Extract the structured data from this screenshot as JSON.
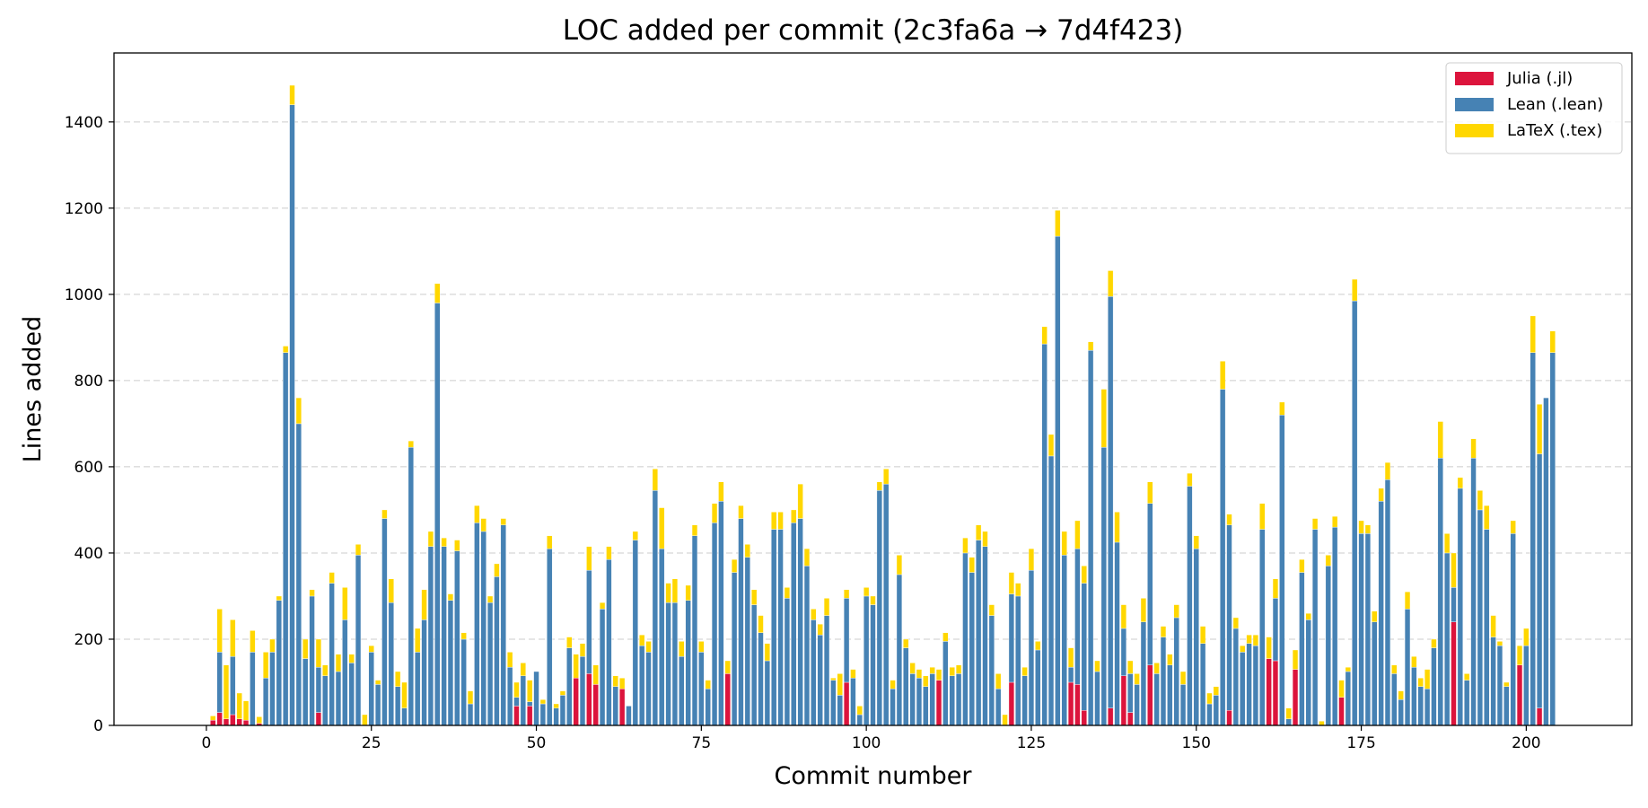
{
  "chart_data": {
    "type": "bar",
    "stacked": true,
    "title": "LOC added per commit (2c3fa6a → 7d4f423)",
    "xlabel": "Commit number",
    "ylabel": "Lines added",
    "xlim": [
      -14,
      216
    ],
    "ylim": [
      0,
      1560
    ],
    "xticks": [
      0,
      25,
      50,
      75,
      100,
      125,
      150,
      175,
      200
    ],
    "yticks": [
      0,
      200,
      400,
      600,
      800,
      1000,
      1200,
      1400
    ],
    "grid": "y-dashed",
    "legend_position": "top-right",
    "x": [
      1,
      2,
      3,
      4,
      5,
      6,
      7,
      8,
      9,
      10,
      11,
      12,
      13,
      14,
      15,
      16,
      17,
      18,
      19,
      20,
      21,
      22,
      23,
      24,
      25,
      26,
      27,
      28,
      29,
      30,
      31,
      32,
      33,
      34,
      35,
      36,
      37,
      38,
      39,
      40,
      41,
      42,
      43,
      44,
      45,
      46,
      47,
      48,
      49,
      50,
      51,
      52,
      53,
      54,
      55,
      56,
      57,
      58,
      59,
      60,
      61,
      62,
      63,
      64,
      65,
      66,
      67,
      68,
      69,
      70,
      71,
      72,
      73,
      74,
      75,
      76,
      77,
      78,
      79,
      80,
      81,
      82,
      83,
      84,
      85,
      86,
      87,
      88,
      89,
      90,
      91,
      92,
      93,
      94,
      95,
      96,
      97,
      98,
      99,
      100,
      101,
      102,
      103,
      104,
      105,
      106,
      107,
      108,
      109,
      110,
      111,
      112,
      113,
      114,
      115,
      116,
      117,
      118,
      119,
      120,
      121,
      122,
      123,
      124,
      125,
      126,
      127,
      128,
      129,
      130,
      131,
      132,
      133,
      134,
      135,
      136,
      137,
      138,
      139,
      140,
      141,
      142,
      143,
      144,
      145,
      146,
      147,
      148,
      149,
      150,
      151,
      152,
      153,
      154,
      155,
      156,
      157,
      158,
      159,
      160,
      161,
      162,
      163,
      164,
      165,
      166,
      167,
      168,
      169,
      170,
      171,
      172,
      173,
      174,
      175,
      176,
      177,
      178,
      179,
      180,
      181,
      182,
      183,
      184,
      185,
      186,
      187,
      188,
      189,
      190,
      191,
      192,
      193,
      194,
      195,
      196,
      197,
      198,
      199,
      200,
      201,
      202,
      203,
      204
    ],
    "series": [
      {
        "name": "Julia (.jl)",
        "color": "#dc143c",
        "values": [
          12,
          30,
          15,
          25,
          15,
          12,
          0,
          5,
          0,
          0,
          0,
          0,
          0,
          0,
          0,
          0,
          30,
          0,
          0,
          0,
          0,
          0,
          0,
          0,
          0,
          0,
          0,
          0,
          0,
          0,
          0,
          0,
          0,
          0,
          0,
          0,
          0,
          0,
          0,
          0,
          0,
          0,
          0,
          0,
          0,
          0,
          45,
          0,
          45,
          0,
          0,
          0,
          0,
          0,
          0,
          110,
          0,
          120,
          95,
          0,
          0,
          0,
          85,
          0,
          0,
          0,
          0,
          0,
          0,
          0,
          0,
          0,
          0,
          0,
          0,
          0,
          0,
          0,
          120,
          0,
          0,
          0,
          0,
          0,
          0,
          0,
          0,
          0,
          0,
          0,
          0,
          0,
          0,
          0,
          0,
          0,
          100,
          0,
          0,
          0,
          0,
          0,
          0,
          0,
          0,
          0,
          0,
          0,
          0,
          0,
          105,
          0,
          0,
          0,
          0,
          0,
          0,
          0,
          0,
          0,
          0,
          100,
          0,
          0,
          0,
          0,
          0,
          0,
          0,
          0,
          100,
          95,
          35,
          0,
          0,
          0,
          40,
          0,
          115,
          30,
          0,
          0,
          140,
          0,
          0,
          0,
          0,
          0,
          0,
          0,
          0,
          0,
          0,
          0,
          35,
          0,
          0,
          0,
          0,
          0,
          155,
          150,
          0,
          0,
          130,
          0,
          0,
          0,
          0,
          0,
          0,
          65,
          0,
          0,
          0,
          0,
          0,
          0,
          0,
          0,
          0,
          0,
          0,
          0,
          0,
          0,
          0,
          0,
          240,
          0,
          0,
          0,
          0,
          0,
          0,
          0,
          0,
          0,
          140,
          0,
          0,
          40,
          0,
          0
        ]
      },
      {
        "name": "Lean (.lean)",
        "color": "#4682b4",
        "values": [
          0,
          140,
          0,
          135,
          0,
          0,
          170,
          0,
          110,
          170,
          290,
          865,
          1440,
          700,
          155,
          300,
          105,
          115,
          330,
          125,
          245,
          145,
          395,
          0,
          170,
          95,
          480,
          285,
          90,
          40,
          645,
          170,
          245,
          415,
          980,
          415,
          290,
          405,
          200,
          50,
          470,
          450,
          285,
          345,
          465,
          135,
          20,
          115,
          10,
          125,
          50,
          410,
          40,
          70,
          180,
          0,
          160,
          240,
          0,
          270,
          385,
          90,
          0,
          45,
          430,
          185,
          170,
          545,
          410,
          285,
          285,
          160,
          290,
          440,
          170,
          85,
          470,
          520,
          0,
          355,
          480,
          390,
          280,
          215,
          150,
          455,
          455,
          295,
          470,
          480,
          370,
          245,
          210,
          255,
          105,
          70,
          195,
          110,
          25,
          300,
          280,
          545,
          560,
          85,
          350,
          180,
          120,
          110,
          90,
          120,
          0,
          195,
          115,
          120,
          400,
          355,
          430,
          415,
          255,
          85,
          0,
          205,
          300,
          115,
          360,
          175,
          885,
          625,
          1135,
          395,
          35,
          315,
          295,
          870,
          125,
          645,
          955,
          425,
          110,
          90,
          95,
          240,
          375,
          120,
          205,
          140,
          250,
          95,
          555,
          410,
          190,
          50,
          70,
          780,
          430,
          225,
          170,
          190,
          185,
          455,
          0,
          145,
          720,
          15,
          0,
          355,
          245,
          455,
          0,
          370,
          460,
          0,
          125,
          985,
          445,
          445,
          240,
          520,
          570,
          120,
          60,
          270,
          135,
          90,
          85,
          180,
          620,
          400,
          80,
          550,
          105,
          620,
          500,
          455,
          205,
          185,
          90,
          445,
          0,
          185,
          865,
          590,
          760,
          865
        ]
      },
      {
        "name": "LaTeX (.tex)",
        "color": "#ffd700",
        "values": [
          10,
          100,
          125,
          85,
          60,
          45,
          50,
          15,
          60,
          30,
          10,
          15,
          45,
          60,
          45,
          15,
          65,
          25,
          25,
          40,
          75,
          20,
          25,
          25,
          15,
          10,
          20,
          55,
          35,
          60,
          15,
          55,
          70,
          35,
          45,
          20,
          15,
          25,
          15,
          30,
          40,
          30,
          15,
          30,
          15,
          35,
          35,
          30,
          50,
          0,
          10,
          30,
          10,
          10,
          25,
          55,
          30,
          55,
          45,
          15,
          30,
          25,
          25,
          0,
          20,
          25,
          25,
          50,
          95,
          45,
          55,
          35,
          35,
          25,
          25,
          20,
          45,
          45,
          30,
          30,
          30,
          30,
          35,
          40,
          40,
          40,
          40,
          25,
          30,
          80,
          40,
          25,
          25,
          40,
          5,
          50,
          20,
          20,
          20,
          20,
          20,
          20,
          35,
          20,
          45,
          20,
          25,
          20,
          25,
          15,
          25,
          20,
          20,
          20,
          35,
          35,
          35,
          35,
          25,
          35,
          25,
          50,
          30,
          20,
          50,
          20,
          40,
          50,
          60,
          55,
          45,
          65,
          40,
          20,
          25,
          135,
          60,
          70,
          55,
          30,
          25,
          55,
          50,
          25,
          25,
          25,
          30,
          30,
          30,
          30,
          40,
          25,
          20,
          65,
          25,
          25,
          15,
          20,
          25,
          60,
          50,
          45,
          30,
          25,
          45,
          30,
          15,
          25,
          10,
          25,
          25,
          40,
          10,
          50,
          30,
          20,
          25,
          30,
          40,
          20,
          20,
          40,
          25,
          20,
          45,
          20,
          85,
          45,
          80,
          25,
          15,
          45,
          45,
          55,
          50,
          10,
          10,
          30,
          45,
          40,
          85,
          115,
          0,
          50
        ]
      }
    ]
  }
}
